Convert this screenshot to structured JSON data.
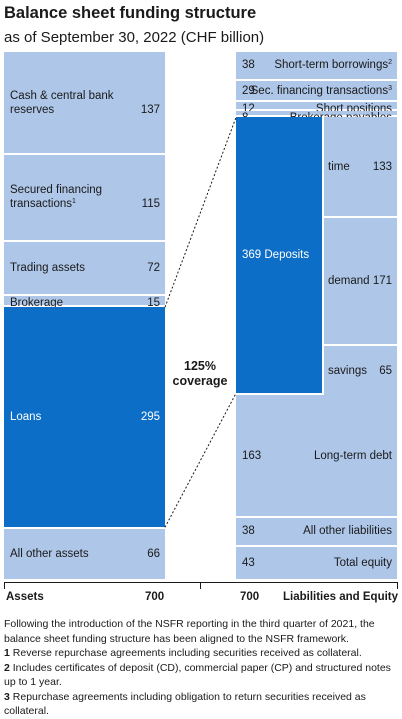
{
  "header": {
    "title": "Balance sheet funding structure",
    "subtitle": "as of September 30, 2022 (CHF billion)"
  },
  "colors": {
    "light": "#aec6e8",
    "dark": "#0d6ec7",
    "background": "#ffffff"
  },
  "chart_data": {
    "type": "stacked_bar",
    "unit": "CHF billion",
    "coverage_text_1": "125%",
    "coverage_text_2": "coverage",
    "assets": {
      "label": "Assets",
      "total": 700,
      "items": [
        {
          "name": "Cash & central bank reserves",
          "value": 137
        },
        {
          "name": "Secured financing transactions",
          "note": "1",
          "value": 115
        },
        {
          "name": "Trading assets",
          "value": 72
        },
        {
          "name": "Brokerage receivables",
          "value": 15
        },
        {
          "name": "Loans",
          "value": 295
        },
        {
          "name": "All other assets",
          "value": 66
        }
      ]
    },
    "liabilities": {
      "label": "Liabilities and Equity",
      "total": 700,
      "items": [
        {
          "name": "Short-term borrowings",
          "note": "2",
          "value": 38
        },
        {
          "name": "Sec. financing transactions",
          "note": "3",
          "value": 29
        },
        {
          "name": "Short positions",
          "value": 12
        },
        {
          "name": "Brokerage payables",
          "value": 8
        },
        {
          "name": "Deposits",
          "value": 369
        },
        {
          "name": "Long-term debt",
          "value": 163
        },
        {
          "name": "All other liabilities",
          "value": 38
        },
        {
          "name": "Total equity",
          "value": 43
        }
      ],
      "deposit_breakdown": [
        {
          "name": "time",
          "value": 133
        },
        {
          "name": "demand",
          "value": 171
        },
        {
          "name": "savings",
          "value": 65
        }
      ]
    }
  },
  "footnotes": {
    "intro": "Following the introduction of the NSFR reporting in the third quarter of 2021, the balance sheet funding structure has been aligned to the NSFR framework.",
    "n1_num": "1",
    "n1_text": "Reverse repurchase agreements including securities received as collateral.",
    "n2_num": "2",
    "n2_text": "Includes certificates of deposit (CD), commercial paper (CP) and structured notes up to 1 year.",
    "n3_num": "3",
    "n3_text": "Repurchase agreements including obligation to return securities received as collateral."
  }
}
